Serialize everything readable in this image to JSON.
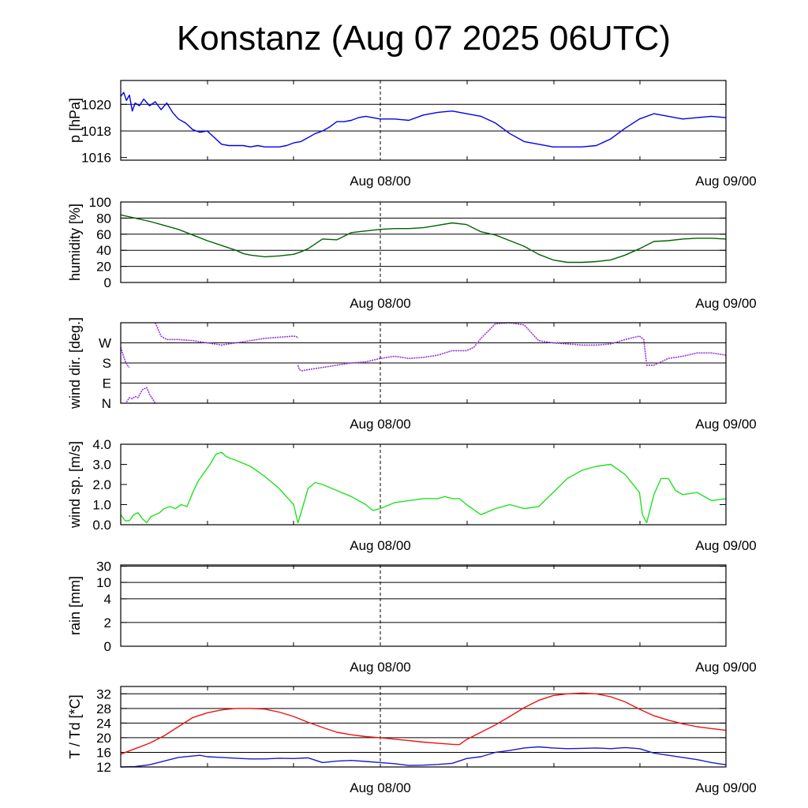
{
  "title": "Konstanz (Aug 07 2025 06UTC)",
  "colors": {
    "pressure": "#0000ee",
    "humidity": "#006400",
    "wind_dir": "#9b30e0",
    "wind_speed": "#22e022",
    "temperature": "#ee1111",
    "dewpoint": "#1a1acc"
  },
  "chart_data": [
    {
      "type": "line",
      "ylabel": "p [hPa]",
      "x_tick_labels": [
        "Aug 08/00",
        "Aug 09/00"
      ],
      "x_range_hours": [
        0,
        42
      ],
      "ylim": [
        1015.8,
        1021.8
      ],
      "yticks": [
        1016,
        1018,
        1020
      ],
      "ytick_labels": [
        "1016",
        "1018",
        "1020"
      ],
      "grid_y": [
        1018,
        1020
      ],
      "series": [
        {
          "color_key": "pressure",
          "x": [
            0,
            0.2,
            0.4,
            0.6,
            0.8,
            1,
            1.3,
            1.6,
            2,
            2.4,
            2.8,
            3.2,
            3.6,
            4,
            4.5,
            5,
            5.5,
            6,
            6.5,
            7,
            7.5,
            8,
            8.5,
            9,
            9.5,
            10,
            10.5,
            11,
            11.5,
            12,
            12.5,
            13,
            13.5,
            14,
            14.5,
            15,
            15.5,
            16,
            16.5,
            17,
            18,
            19,
            20,
            21,
            22,
            23,
            24,
            25,
            26,
            27,
            28,
            29,
            30,
            31,
            32,
            33,
            34,
            35,
            36,
            37,
            38,
            39,
            40,
            41,
            42
          ],
          "y": [
            1020.6,
            1020.9,
            1020.3,
            1020.7,
            1019.5,
            1020.1,
            1019.9,
            1020.4,
            1019.9,
            1020.2,
            1019.6,
            1020.1,
            1019.4,
            1018.9,
            1018.6,
            1018.1,
            1017.9,
            1018.0,
            1017.5,
            1017.0,
            1016.9,
            1016.9,
            1016.9,
            1016.8,
            1016.9,
            1016.8,
            1016.8,
            1016.8,
            1016.9,
            1017.1,
            1017.2,
            1017.5,
            1017.8,
            1018.0,
            1018.3,
            1018.7,
            1018.7,
            1018.8,
            1019.0,
            1019.1,
            1018.9,
            1018.9,
            1018.8,
            1019.2,
            1019.4,
            1019.5,
            1019.3,
            1019.1,
            1018.6,
            1017.8,
            1017.2,
            1017.0,
            1016.8,
            1016.8,
            1016.8,
            1016.9,
            1017.4,
            1018.2,
            1018.9,
            1019.3,
            1019.1,
            1018.9,
            1019.0,
            1019.1,
            1019.0
          ]
        }
      ]
    },
    {
      "type": "line",
      "ylabel": "humidity [%]",
      "x_tick_labels": [
        "Aug 08/00",
        "Aug 09/00"
      ],
      "x_range_hours": [
        0,
        42
      ],
      "ylim": [
        0,
        100
      ],
      "yticks": [
        0,
        20,
        40,
        60,
        80,
        100
      ],
      "ytick_labels": [
        "0",
        "20",
        "40",
        "60",
        "80",
        "100"
      ],
      "grid_y": [
        20,
        40,
        60,
        80
      ],
      "series": [
        {
          "color_key": "humidity",
          "x": [
            0,
            1,
            2,
            3,
            4,
            5,
            6,
            7,
            8,
            8.5,
            9,
            10,
            11,
            12,
            12.5,
            13,
            14,
            15,
            16,
            17,
            18,
            19,
            20,
            21,
            22,
            23,
            24,
            25,
            26,
            27,
            28,
            29,
            30,
            31,
            32,
            33,
            34,
            35,
            36,
            37,
            38,
            39,
            40,
            41,
            42
          ],
          "y": [
            84,
            80,
            76,
            71,
            66,
            59,
            52,
            46,
            40,
            36,
            34,
            32,
            33,
            35,
            38,
            42,
            54,
            53,
            62,
            64,
            66,
            67,
            67,
            68,
            71,
            74,
            72,
            63,
            59,
            52,
            45,
            35,
            28,
            25,
            25,
            26,
            28,
            34,
            42,
            51,
            52,
            54,
            55,
            55,
            54
          ]
        }
      ]
    },
    {
      "type": "scatter",
      "ylabel": "wind dir. [deg.]",
      "x_tick_labels": [
        "Aug 08/00",
        "Aug 09/00"
      ],
      "x_range_hours": [
        0,
        42
      ],
      "ylim": [
        0,
        360
      ],
      "yticks": [
        0,
        90,
        180,
        270
      ],
      "ytick_labels": [
        "N",
        "E",
        "S",
        "W"
      ],
      "grid_y": [
        90,
        180,
        270
      ],
      "series": [
        {
          "color_key": "wind_dir",
          "segments": [
            {
              "x": [
                0,
                0.15,
                0.3,
                0.45,
                0.6
              ],
              "y": [
                250,
                220,
                190,
                170,
                160
              ]
            },
            {
              "x": [
                0.4,
                0.6,
                0.8,
                1,
                1.2,
                1.5,
                1.8,
                2,
                2.2,
                2.4
              ],
              "y": [
                5,
                25,
                20,
                30,
                25,
                60,
                70,
                40,
                20,
                0
              ]
            },
            {
              "x": [
                2.4,
                2.8,
                3.2,
                4,
                5,
                6,
                6.5,
                7,
                8,
                9,
                10,
                11,
                12,
                12.2,
                12.3
              ],
              "y": [
                360,
                300,
                285,
                285,
                280,
                270,
                265,
                260,
                270,
                280,
                290,
                295,
                300,
                298,
                290
              ]
            },
            {
              "x": [
                12.3,
                12.4,
                12.6,
                13,
                14,
                15,
                16,
                17,
                18,
                19,
                20,
                21,
                22,
                23,
                24,
                24.5,
                25,
                26,
                27,
                28,
                29,
                30,
                31,
                32,
                33,
                34,
                35,
                36,
                36.3,
                36.5,
                37,
                38,
                39,
                40,
                41,
                42
              ],
              "y": [
                170,
                150,
                145,
                150,
                160,
                170,
                180,
                185,
                200,
                210,
                200,
                205,
                215,
                235,
                235,
                250,
                290,
                355,
                360,
                350,
                280,
                270,
                265,
                260,
                260,
                265,
                285,
                300,
                285,
                170,
                170,
                200,
                210,
                225,
                225,
                215
              ]
            }
          ]
        }
      ]
    },
    {
      "type": "line",
      "ylabel": "wind sp. [m/s]",
      "x_tick_labels": [
        "Aug 08/00",
        "Aug 09/00"
      ],
      "x_range_hours": [
        0,
        42
      ],
      "ylim": [
        0,
        4
      ],
      "yticks": [
        0,
        1,
        2,
        3,
        4
      ],
      "ytick_labels": [
        "0.0",
        "1.0",
        "2.0",
        "3.0",
        "4.0"
      ],
      "grid_y": [],
      "series": [
        {
          "color_key": "wind_speed",
          "x": [
            0,
            0.3,
            0.6,
            0.9,
            1.2,
            1.5,
            1.8,
            2.1,
            2.4,
            2.7,
            3,
            3.4,
            3.8,
            4.2,
            4.6,
            5,
            5.4,
            5.8,
            6.2,
            6.6,
            7,
            7.3,
            7.6,
            8,
            9,
            10,
            11,
            12,
            12.3,
            12.6,
            13,
            13.5,
            14,
            15,
            16,
            17,
            17.5,
            18,
            19,
            20,
            21,
            22,
            22.5,
            23,
            23.5,
            24,
            25,
            26,
            27,
            28,
            29,
            30,
            31,
            32,
            33,
            34,
            35,
            36,
            36.2,
            36.5,
            37,
            37.5,
            38,
            38.5,
            39,
            40,
            41,
            42
          ],
          "y": [
            0.5,
            0.2,
            0.2,
            0.5,
            0.6,
            0.3,
            0.1,
            0.4,
            0.5,
            0.6,
            0.8,
            0.9,
            0.8,
            1.0,
            0.9,
            1.6,
            2.2,
            2.6,
            3.0,
            3.5,
            3.6,
            3.4,
            3.3,
            3.2,
            2.9,
            2.4,
            1.8,
            1.0,
            0.1,
            0.8,
            1.8,
            2.1,
            2.0,
            1.7,
            1.4,
            1.0,
            0.7,
            0.8,
            1.1,
            1.2,
            1.3,
            1.3,
            1.4,
            1.3,
            1.3,
            1.0,
            0.5,
            0.8,
            1.0,
            0.8,
            0.9,
            1.6,
            2.3,
            2.7,
            2.9,
            3.0,
            2.5,
            1.6,
            0.5,
            0.1,
            1.5,
            2.3,
            2.3,
            1.7,
            1.5,
            1.6,
            1.2,
            1.3
          ]
        }
      ]
    },
    {
      "type": "line",
      "ylabel": "rain [mm]",
      "x_tick_labels": [
        "Aug 08/00",
        "Aug 09/00"
      ],
      "x_range_hours": [
        0,
        42
      ],
      "ylim": [
        0,
        30
      ],
      "yticks": [
        0,
        2,
        4,
        10,
        30
      ],
      "ytick_labels": [
        "0",
        "2",
        "4",
        "10",
        "30"
      ],
      "ytick_positions": [
        0,
        0.2925,
        0.5835,
        0.7855,
        0.9845
      ],
      "grid_y": [
        2,
        4,
        10,
        30
      ],
      "series": []
    },
    {
      "type": "line",
      "ylabel": "T / Td [*C]",
      "x_tick_labels": [
        "Aug 08/00",
        "Aug 09/00"
      ],
      "x_range_hours": [
        0,
        42
      ],
      "ylim": [
        12,
        34
      ],
      "yticks": [
        12,
        16,
        20,
        24,
        28,
        32
      ],
      "ytick_labels": [
        "12",
        "16",
        "20",
        "24",
        "28",
        "32"
      ],
      "grid_y": [
        16,
        20,
        24,
        28,
        32
      ],
      "series": [
        {
          "color_key": "temperature",
          "x": [
            0,
            1,
            2,
            3,
            4,
            5,
            6,
            7,
            8,
            9,
            10,
            11,
            12,
            13,
            14,
            15,
            16,
            17,
            18,
            19,
            20,
            21,
            22,
            23,
            23.5,
            24,
            25,
            26,
            27,
            28,
            29,
            30,
            31,
            32,
            33,
            34,
            35,
            36,
            37,
            38,
            39,
            40,
            41,
            42
          ],
          "y": [
            15.5,
            17.0,
            18.5,
            20.5,
            23.0,
            25.5,
            26.8,
            27.6,
            28.0,
            28.0,
            27.8,
            27.0,
            25.8,
            24.2,
            22.8,
            21.5,
            20.8,
            20.3,
            20.0,
            19.6,
            19.2,
            18.8,
            18.5,
            18.2,
            18.1,
            19.5,
            21.5,
            23.5,
            25.8,
            28.2,
            30.2,
            31.5,
            32.0,
            32.2,
            32.0,
            31.2,
            29.8,
            27.8,
            26.0,
            24.8,
            23.8,
            23.0,
            22.5,
            22.0
          ]
        },
        {
          "color_key": "dewpoint",
          "x": [
            0,
            1,
            2,
            3,
            4,
            5,
            5.5,
            6,
            7,
            8,
            9,
            10,
            11,
            12,
            13,
            14,
            15,
            16,
            17,
            18,
            19,
            20,
            21,
            22,
            23,
            24,
            25,
            26,
            27,
            28,
            29,
            30,
            31,
            32,
            33,
            34,
            35,
            36,
            37,
            38,
            39,
            40,
            41,
            42
          ],
          "y": [
            12.0,
            12.1,
            12.6,
            13.6,
            14.6,
            15.0,
            15.2,
            14.8,
            14.6,
            14.4,
            14.2,
            14.2,
            14.4,
            14.3,
            14.5,
            13.2,
            13.6,
            13.8,
            13.5,
            13.2,
            12.9,
            12.4,
            12.5,
            12.7,
            13.0,
            14.3,
            14.8,
            16.0,
            16.5,
            17.2,
            17.5,
            17.2,
            17.0,
            17.1,
            17.2,
            17.0,
            17.3,
            17.0,
            15.8,
            15.2,
            14.6,
            14.0,
            13.2,
            12.6
          ]
        }
      ]
    }
  ]
}
